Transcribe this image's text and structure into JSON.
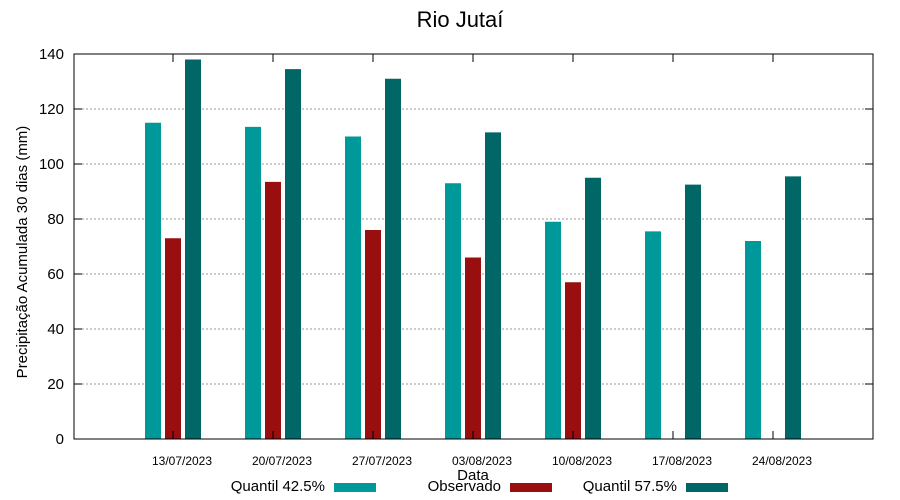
{
  "chart_data": {
    "type": "bar",
    "title": "Rio Jutaí",
    "xlabel": "Data",
    "ylabel": "Precipitação Acumulada 30 dias (mm)",
    "ylim": [
      0,
      140
    ],
    "yticks": [
      0,
      20,
      40,
      60,
      80,
      100,
      120,
      140
    ],
    "grid": true,
    "categories": [
      "13/07/2023",
      "20/07/2023",
      "27/07/2023",
      "03/08/2023",
      "10/08/2023",
      "17/08/2023",
      "24/08/2023"
    ],
    "series": [
      {
        "name": "Quantil 42.5%",
        "color": "#009999",
        "values": [
          115,
          113.5,
          110,
          93,
          79,
          75.5,
          72
        ]
      },
      {
        "name": "Observado",
        "color": "#990f0f",
        "values": [
          73,
          93.5,
          76,
          66,
          57,
          null,
          null
        ]
      },
      {
        "name": "Quantil 57.5%",
        "color": "#006666",
        "values": [
          138,
          134.5,
          131,
          111.5,
          95,
          92.5,
          95.5
        ]
      }
    ]
  }
}
